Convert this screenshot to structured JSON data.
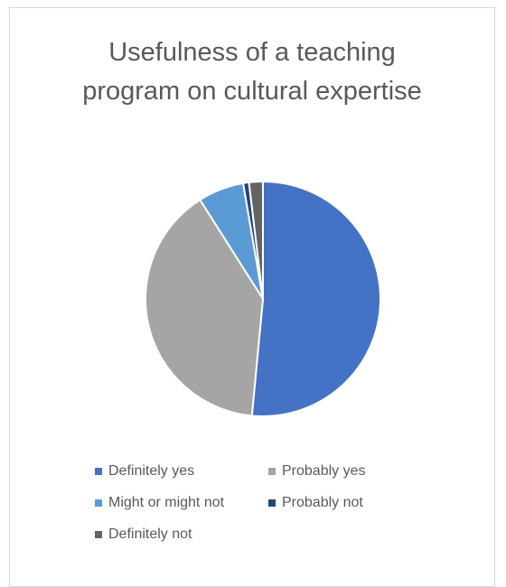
{
  "chart_data": {
    "type": "pie",
    "title": "Usefulness of a teaching program on cultural expertise",
    "categories": [
      "Definitely yes",
      "Probably yes",
      "Might or might not",
      "Probably not",
      "Definitely not"
    ],
    "values": [
      51.5,
      39.5,
      6.3,
      0.8,
      1.9
    ],
    "colors": [
      "#4472c4",
      "#a5a5a5",
      "#5b9bd5",
      "#264478",
      "#636363"
    ],
    "legend": "bottom"
  }
}
